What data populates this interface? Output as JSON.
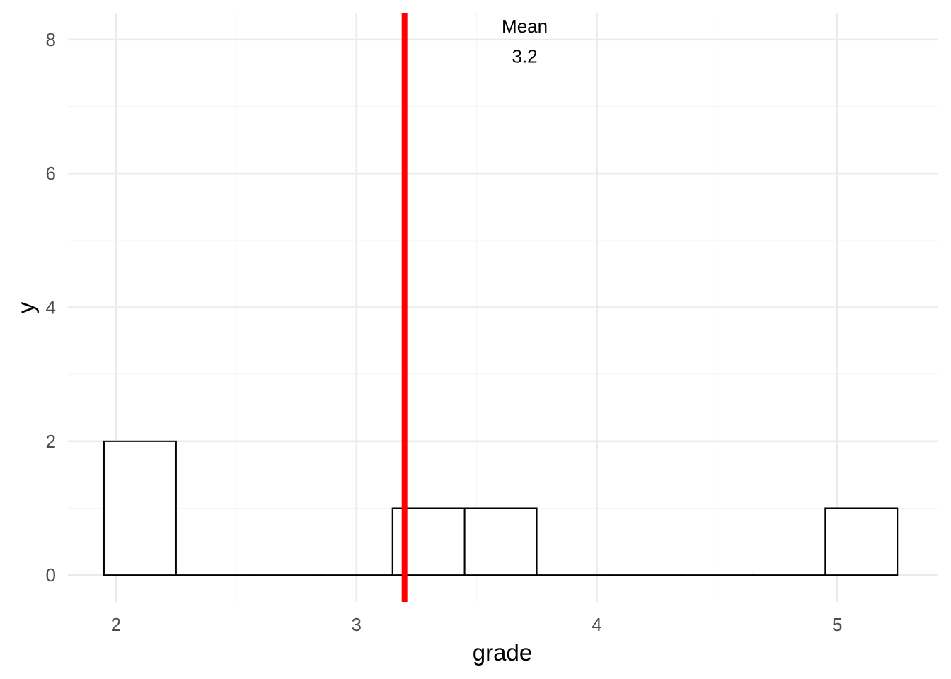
{
  "chart_data": {
    "type": "bar",
    "chart_subtype": "histogram",
    "xlabel": "grade",
    "ylabel": "y",
    "xlim": [
      1.8,
      5.42
    ],
    "ylim": [
      -0.4,
      8.4
    ],
    "x_ticks": [
      "2",
      "3",
      "4",
      "5"
    ],
    "y_ticks": [
      "0",
      "2",
      "4",
      "6",
      "8"
    ],
    "grid": true,
    "bin_width": 0.3,
    "bins": [
      {
        "x_start": 1.95,
        "x_end": 2.25,
        "count": 2
      },
      {
        "x_start": 2.25,
        "x_end": 2.55,
        "count": 0
      },
      {
        "x_start": 2.55,
        "x_end": 2.85,
        "count": 0
      },
      {
        "x_start": 2.85,
        "x_end": 3.15,
        "count": 0
      },
      {
        "x_start": 3.15,
        "x_end": 3.45,
        "count": 1
      },
      {
        "x_start": 3.45,
        "x_end": 3.75,
        "count": 1
      },
      {
        "x_start": 3.75,
        "x_end": 4.05,
        "count": 0
      },
      {
        "x_start": 4.05,
        "x_end": 4.35,
        "count": 0
      },
      {
        "x_start": 4.35,
        "x_end": 4.65,
        "count": 0
      },
      {
        "x_start": 4.65,
        "x_end": 4.95,
        "count": 0
      },
      {
        "x_start": 4.95,
        "x_end": 5.25,
        "count": 1
      }
    ],
    "mean_line": {
      "x": 3.2,
      "color": "#ff0000"
    },
    "annotation": {
      "title": "Mean",
      "value": "3.2",
      "x": 3.7,
      "y_title": 8.2,
      "y_value": 7.75
    },
    "colors": {
      "bar_fill": "#ffffff",
      "bar_stroke": "#000000",
      "grid_major": "#ebebeb",
      "grid_minor": "#f5f5f5",
      "tick_text": "#4d4d4d"
    }
  }
}
